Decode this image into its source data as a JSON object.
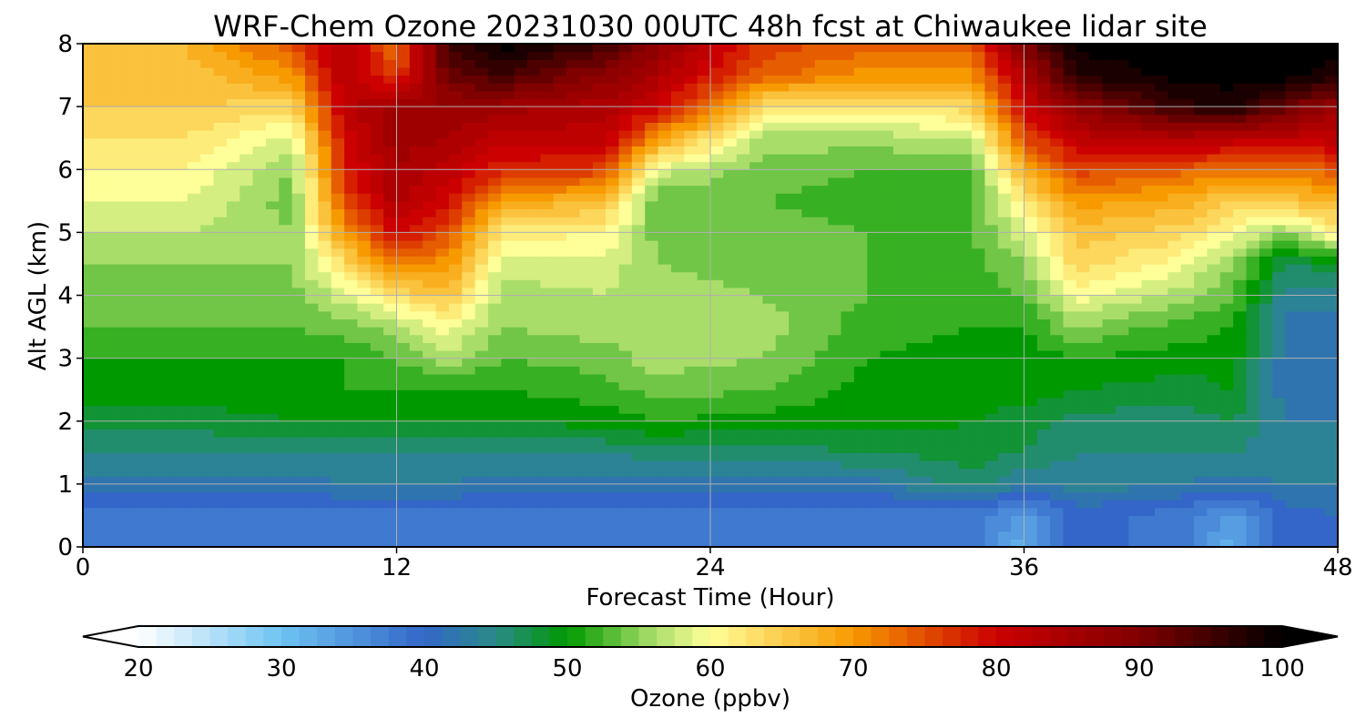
{
  "chart_data": {
    "type": "heatmap",
    "title": "WRF-Chem Ozone  20231030 00UTC 48h fcst at Chiwaukee lidar site",
    "xlabel": "Forecast Time (Hour)",
    "ylabel": "Alt AGL (km)",
    "xlim": [
      0,
      48
    ],
    "ylim": [
      0,
      8
    ],
    "x_ticks": [
      0,
      12,
      24,
      36,
      48
    ],
    "y_ticks": [
      0,
      1,
      2,
      3,
      4,
      5,
      6,
      7,
      8
    ],
    "grid": true,
    "colorbar": {
      "label": "Ozone  (ppbv)",
      "min": 20,
      "max": 100,
      "ticks": [
        20,
        30,
        40,
        50,
        60,
        70,
        80,
        90,
        100
      ],
      "extend": "both",
      "orientation": "horizontal",
      "stops": [
        {
          "v": 20,
          "c": "#ffffff"
        },
        {
          "v": 30,
          "c": "#6ec3f2"
        },
        {
          "v": 40,
          "c": "#3366c8"
        },
        {
          "v": 45,
          "c": "#2a8a88"
        },
        {
          "v": 50,
          "c": "#009900"
        },
        {
          "v": 56,
          "c": "#a9dd6a"
        },
        {
          "v": 60,
          "c": "#ffff99"
        },
        {
          "v": 70,
          "c": "#f79a00"
        },
        {
          "v": 80,
          "c": "#cc0000"
        },
        {
          "v": 90,
          "c": "#800000"
        },
        {
          "v": 100,
          "c": "#000000"
        }
      ]
    },
    "grid_x": [
      0,
      4,
      8,
      10,
      12,
      14,
      16,
      20,
      22,
      26,
      30,
      34,
      36,
      38,
      42,
      44,
      46,
      48
    ],
    "grid_y": [
      0,
      0.5,
      1,
      1.5,
      2,
      2.5,
      3,
      3.5,
      4,
      4.5,
      5,
      5.5,
      6,
      6.5,
      7,
      7.5,
      8
    ],
    "values": [
      [
        38,
        38,
        38,
        38,
        38,
        38,
        38,
        38,
        38,
        38,
        38,
        38,
        32,
        40,
        38,
        32,
        40,
        40
      ],
      [
        38,
        38,
        38,
        38,
        38,
        38,
        38,
        38,
        38,
        38,
        38,
        38,
        34,
        40,
        38,
        34,
        40,
        41
      ],
      [
        42,
        42,
        42,
        43,
        43,
        43,
        42,
        42,
        42,
        42,
        42,
        46,
        43,
        44,
        43,
        42,
        43,
        43
      ],
      [
        45,
        45,
        45,
        45,
        45,
        45,
        45,
        45,
        46,
        46,
        47,
        48,
        47,
        45,
        45,
        45,
        44,
        44
      ],
      [
        48,
        48,
        49,
        49,
        49,
        49,
        49,
        50,
        51,
        50,
        50,
        49,
        48,
        46,
        46,
        47,
        43,
        43
      ],
      [
        50,
        50,
        50,
        51,
        51,
        51,
        51,
        52,
        54,
        53,
        50,
        50,
        50,
        49,
        48,
        49,
        42,
        42
      ],
      [
        51,
        51,
        51,
        51,
        53,
        56,
        53,
        54,
        56,
        55,
        51,
        50,
        50,
        51,
        50,
        50,
        42,
        42
      ],
      [
        53,
        53,
        53,
        54,
        56,
        60,
        55,
        56,
        57,
        56,
        52,
        51,
        51,
        55,
        52,
        51,
        42,
        42
      ],
      [
        54,
        54,
        54,
        58,
        63,
        66,
        56,
        57,
        56,
        55,
        53,
        52,
        53,
        60,
        56,
        53,
        44,
        44
      ],
      [
        55,
        55,
        55,
        63,
        72,
        70,
        58,
        58,
        55,
        54,
        53,
        52,
        55,
        64,
        60,
        55,
        47,
        48
      ],
      [
        57,
        57,
        55,
        70,
        80,
        75,
        62,
        61,
        54,
        54,
        53,
        53,
        58,
        66,
        64,
        60,
        55,
        62
      ],
      [
        59,
        59,
        54,
        75,
        84,
        79,
        70,
        66,
        53,
        53,
        52,
        52,
        62,
        70,
        68,
        64,
        66,
        67
      ],
      [
        61,
        61,
        55,
        78,
        85,
        82,
        78,
        76,
        58,
        54,
        53,
        53,
        68,
        76,
        74,
        72,
        72,
        75
      ],
      [
        63,
        63,
        58,
        80,
        86,
        85,
        82,
        82,
        70,
        56,
        56,
        57,
        75,
        82,
        84,
        82,
        82,
        82
      ],
      [
        65,
        65,
        64,
        82,
        86,
        87,
        86,
        84,
        80,
        63,
        62,
        64,
        80,
        88,
        96,
        98,
        92,
        86
      ],
      [
        66,
        66,
        70,
        83,
        76,
        92,
        95,
        88,
        84,
        74,
        70,
        70,
        84,
        97,
        100,
        100,
        100,
        98
      ],
      [
        67,
        67,
        75,
        84,
        72,
        96,
        100,
        95,
        88,
        76,
        74,
        74,
        90,
        100,
        100,
        100,
        100,
        100
      ]
    ]
  }
}
